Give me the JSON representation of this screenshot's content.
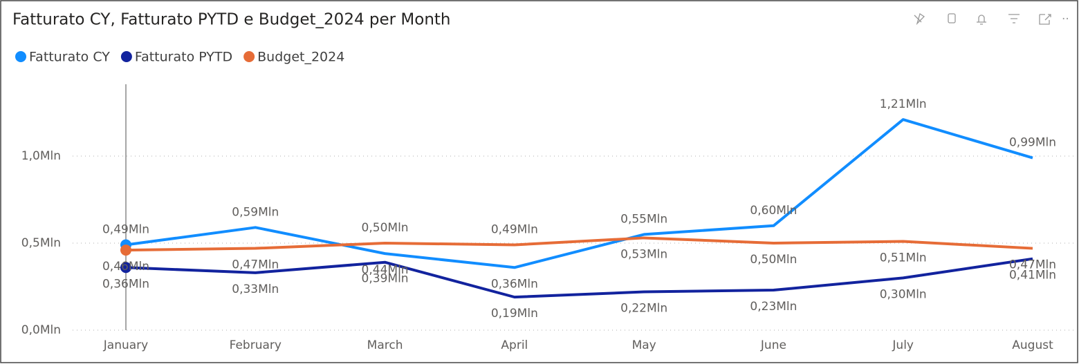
{
  "chart_data": {
    "type": "line",
    "title": "Fatturato CY, Fatturato PYTD e Budget_2024 per Month",
    "categories": [
      "January",
      "February",
      "March",
      "April",
      "May",
      "June",
      "July",
      "August"
    ],
    "series": [
      {
        "name": "Fatturato CY",
        "color": "#118dff",
        "values": [
          0.49,
          0.59,
          0.44,
          0.36,
          0.55,
          0.6,
          1.21,
          0.99
        ],
        "value_labels": [
          "0,49Mln",
          "0,59Mln",
          "0,44Mln",
          "0,36Mln",
          "0,55Mln",
          "0,60Mln",
          "1,21Mln",
          "0,99Mln"
        ]
      },
      {
        "name": "Fatturato PYTD",
        "color": "#12239e",
        "values": [
          0.36,
          0.33,
          0.39,
          0.19,
          0.22,
          0.23,
          0.3,
          0.41
        ],
        "value_labels": [
          "0,36Mln",
          "0,33Mln",
          "0,39Mln",
          "0,19Mln",
          "0,22Mln",
          "0,23Mln",
          "0,30Mln",
          "0,41Mln"
        ]
      },
      {
        "name": "Budget_2024",
        "color": "#e66c37",
        "values": [
          0.46,
          0.47,
          0.5,
          0.49,
          0.53,
          0.5,
          0.51,
          0.47
        ],
        "value_labels": [
          "0,46Mln",
          "0,47Mln",
          "0,50Mln",
          "0,49Mln",
          "0,53Mln",
          "0,50Mln",
          "0,51Mln",
          "0,47Mln"
        ]
      }
    ],
    "ylim": [
      0,
      1.4
    ],
    "yticks": [
      {
        "value": 0,
        "label": "0,0Mln"
      },
      {
        "value": 0.5,
        "label": "0,5Mln"
      },
      {
        "value": 1,
        "label": "1,0Mln"
      }
    ],
    "grid": true,
    "legend": "top-left"
  }
}
